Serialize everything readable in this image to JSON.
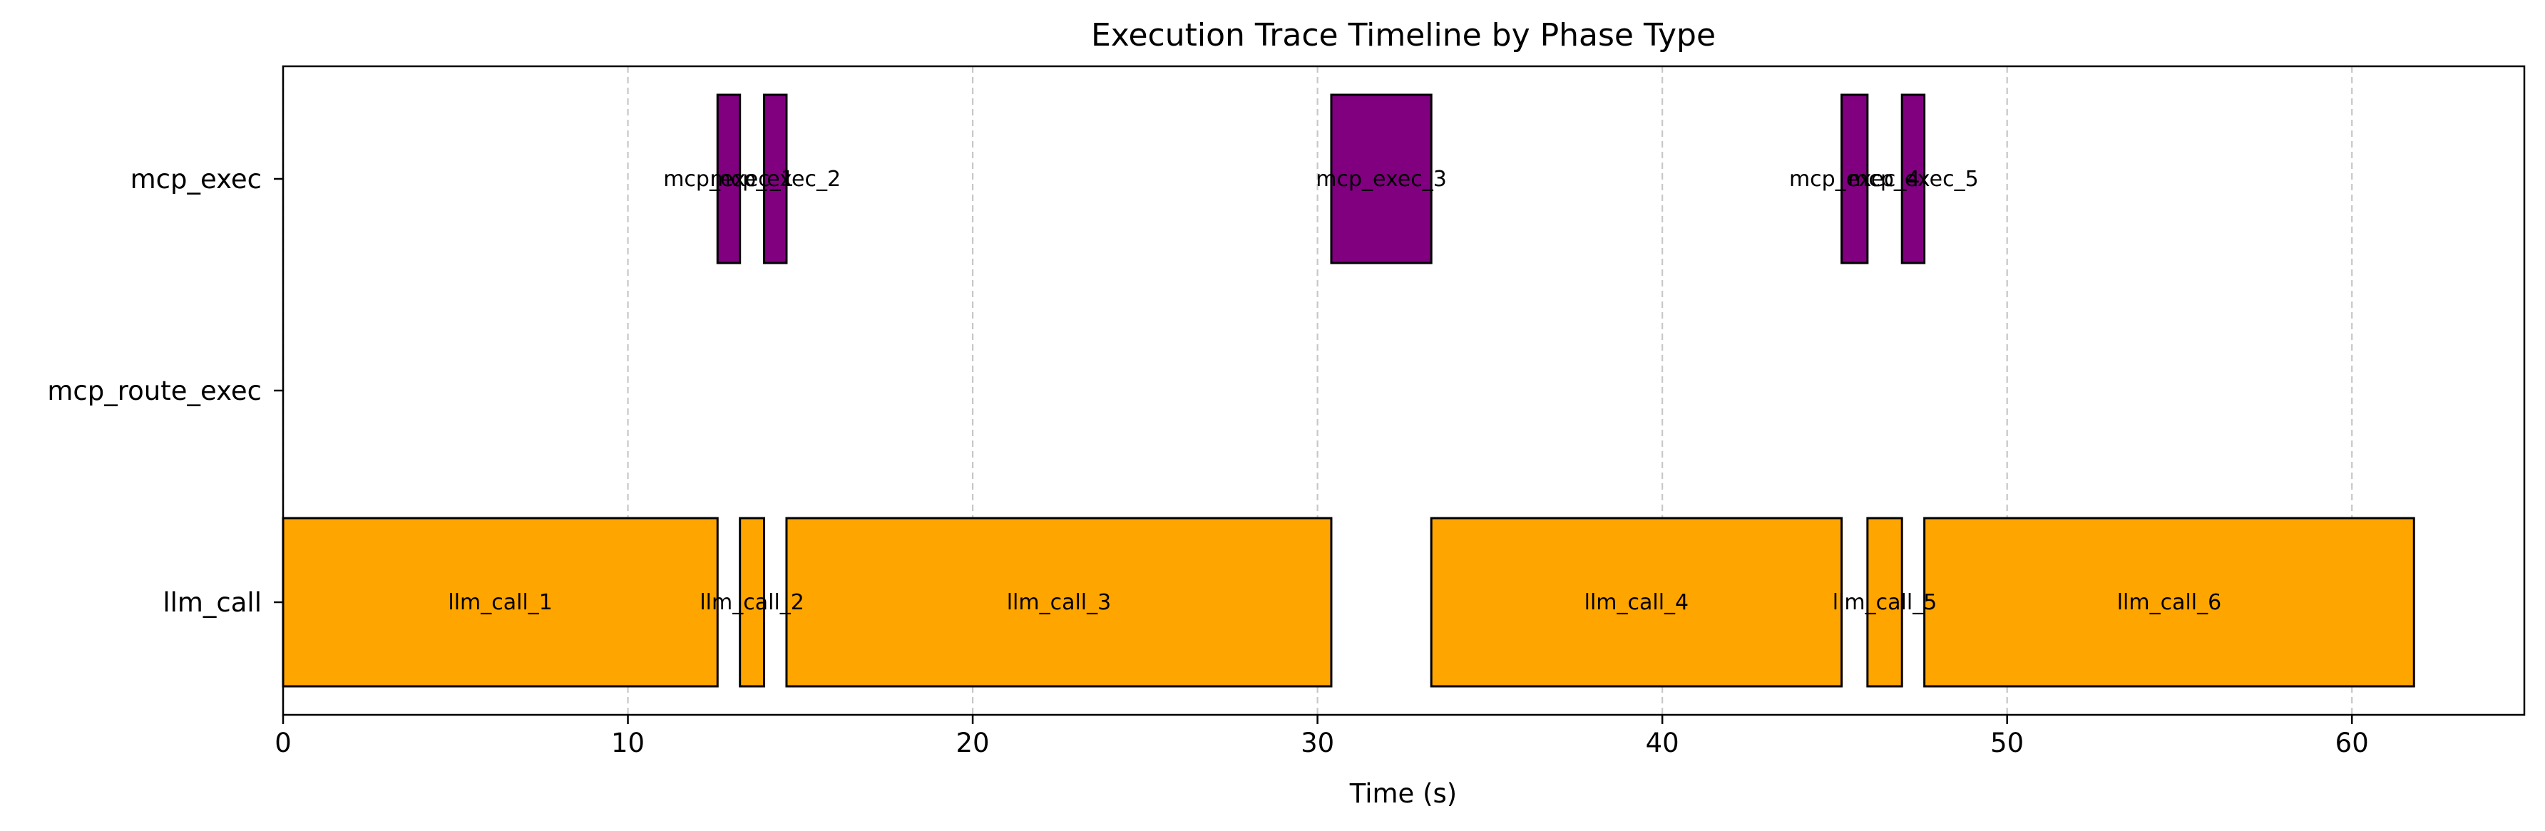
{
  "chart_data": {
    "type": "gantt",
    "title": "Execution Trace Timeline by Phase Type",
    "xlabel": "Time (s)",
    "ylabel": "",
    "xlim": [
      0,
      65
    ],
    "x_ticks": [
      0,
      10,
      20,
      30,
      40,
      50,
      60
    ],
    "grid": "vertical dashed",
    "categories": [
      "mcp_exec",
      "mcp_route_exec",
      "llm_call"
    ],
    "colors": {
      "llm_call": "#FFA500",
      "mcp_exec": "#800080"
    },
    "series": [
      {
        "name": "mcp_exec",
        "spans": [
          {
            "label": "mcp_exec_1",
            "start": 12.6,
            "end": 13.25
          },
          {
            "label": "mcp_exec_2",
            "start": 13.95,
            "end": 14.6
          },
          {
            "label": "mcp_exec_3",
            "start": 30.4,
            "end": 33.3
          },
          {
            "label": "mcp_exec_4",
            "start": 45.2,
            "end": 45.95
          },
          {
            "label": "mcp_exec_5",
            "start": 46.95,
            "end": 47.6
          }
        ]
      },
      {
        "name": "mcp_route_exec",
        "spans": []
      },
      {
        "name": "llm_call",
        "spans": [
          {
            "label": "llm_call_1",
            "start": 0.0,
            "end": 12.6
          },
          {
            "label": "llm_call_2",
            "start": 13.25,
            "end": 13.95
          },
          {
            "label": "llm_call_3",
            "start": 14.6,
            "end": 30.4
          },
          {
            "label": "llm_call_4",
            "start": 33.3,
            "end": 45.2
          },
          {
            "label": "llm_call_5",
            "start": 45.95,
            "end": 46.95
          },
          {
            "label": "llm_call_6",
            "start": 47.6,
            "end": 61.8
          }
        ]
      }
    ]
  }
}
